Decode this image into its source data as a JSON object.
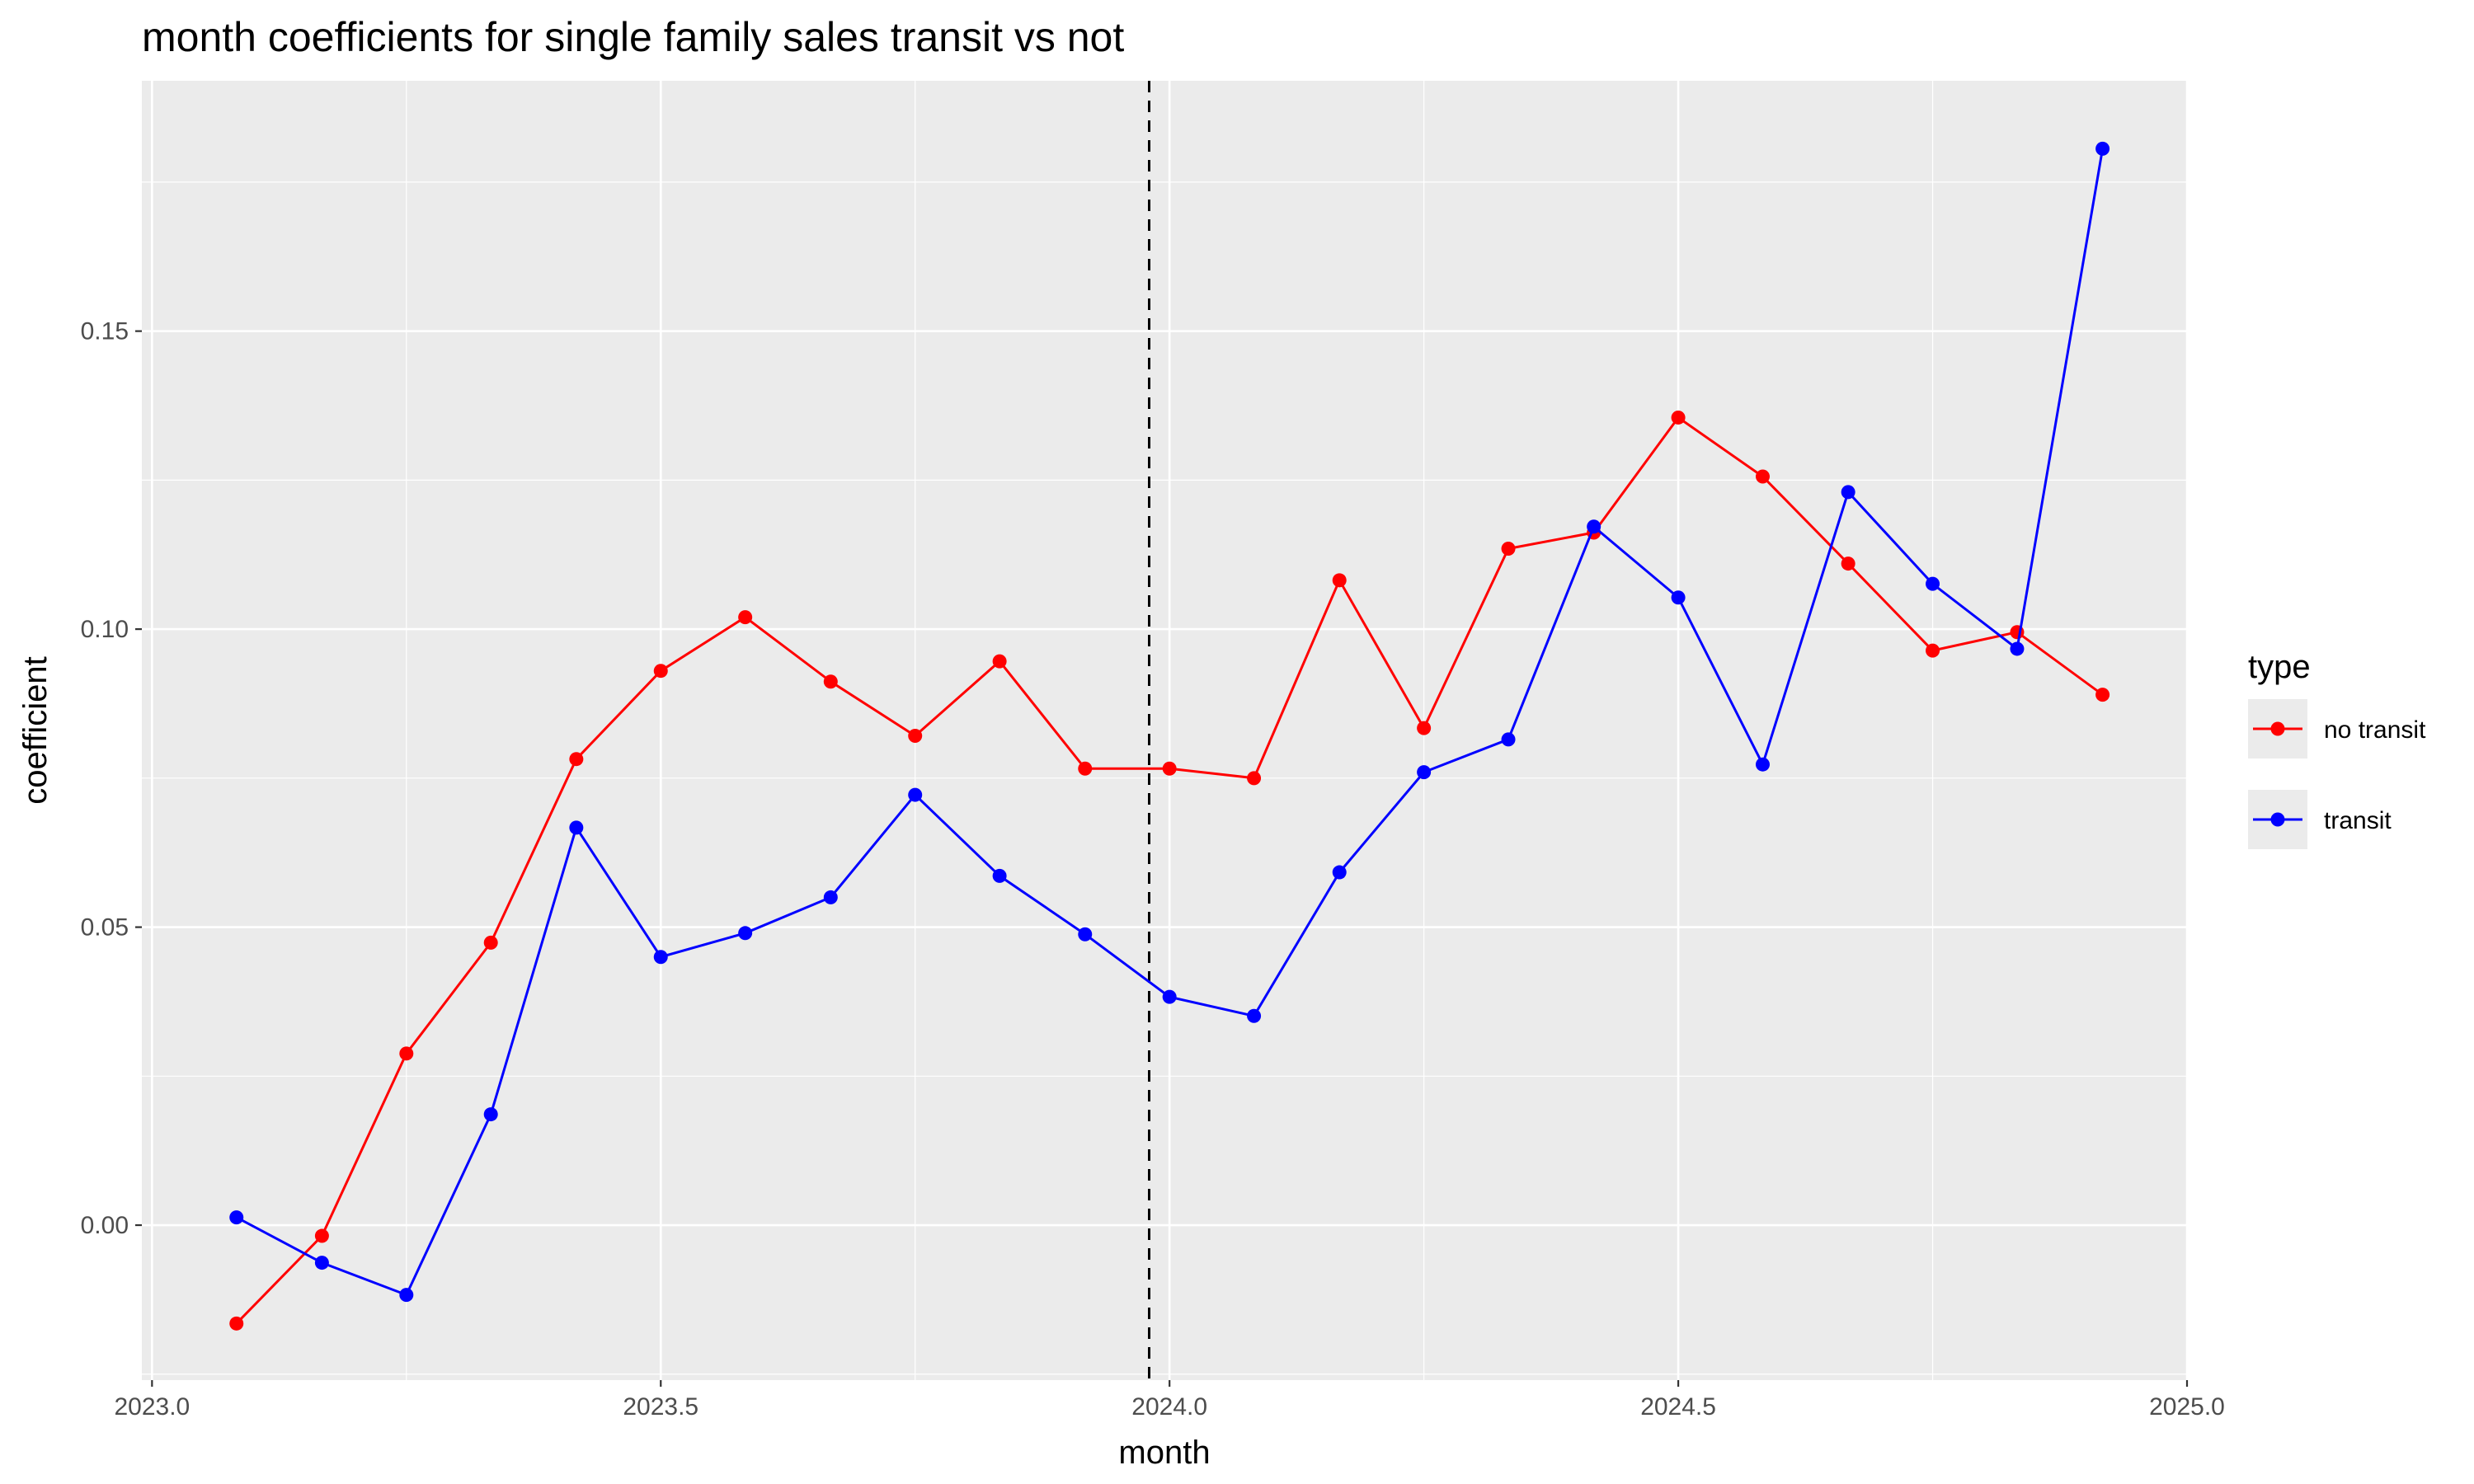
{
  "chart_data": {
    "type": "line",
    "title": "month coefficients for single family sales transit vs not",
    "xlabel": "month",
    "ylabel": "coefficient",
    "xlim": [
      2022.99,
      2025.0
    ],
    "ylim": [
      -0.026,
      0.192
    ],
    "x_ticks": [
      2023.0,
      2023.5,
      2024.0,
      2024.5,
      2025.0
    ],
    "x_tick_labels": [
      "2023.0",
      "2023.5",
      "2024.0",
      "2024.5",
      "2025.0"
    ],
    "y_ticks": [
      0.0,
      0.05,
      0.1,
      0.15
    ],
    "y_tick_labels": [
      "0.00",
      "0.05",
      "0.10",
      "0.15"
    ],
    "grid": true,
    "vline": {
      "x": 2023.98,
      "style": "dashed",
      "color": "#000000"
    },
    "legend": {
      "title": "type",
      "position": "right",
      "entries": [
        "no transit",
        "transit"
      ]
    },
    "series": [
      {
        "name": "no transit",
        "color": "#ff0000",
        "x": [
          2023.083,
          2023.167,
          2023.25,
          2023.333,
          2023.417,
          2023.5,
          2023.583,
          2023.667,
          2023.75,
          2023.833,
          2023.917,
          2024.0,
          2024.083,
          2024.167,
          2024.25,
          2024.333,
          2024.417,
          2024.5,
          2024.583,
          2024.667,
          2024.75,
          2024.833,
          2024.917
        ],
        "y": [
          -0.0165,
          -0.0018,
          0.0288,
          0.0474,
          0.0782,
          0.093,
          0.102,
          0.0912,
          0.0821,
          0.0946,
          0.0766,
          0.0766,
          0.075,
          0.1082,
          0.0834,
          0.1135,
          0.1162,
          0.1355,
          0.1256,
          0.111,
          0.0964,
          0.0995,
          0.089
        ]
      },
      {
        "name": "transit",
        "color": "#0000ff",
        "x": [
          2023.083,
          2023.167,
          2023.25,
          2023.333,
          2023.417,
          2023.5,
          2023.583,
          2023.667,
          2023.75,
          2023.833,
          2023.917,
          2024.0,
          2024.083,
          2024.167,
          2024.25,
          2024.333,
          2024.417,
          2024.5,
          2024.583,
          2024.667,
          2024.75,
          2024.833,
          2024.917
        ],
        "y": [
          0.0013,
          -0.0063,
          -0.0117,
          0.0186,
          0.0667,
          0.045,
          0.049,
          0.055,
          0.0722,
          0.0586,
          0.0488,
          0.0383,
          0.0351,
          0.0592,
          0.076,
          0.0815,
          0.1172,
          0.1053,
          0.0773,
          0.123,
          0.1076,
          0.0967,
          0.1806
        ]
      }
    ]
  }
}
